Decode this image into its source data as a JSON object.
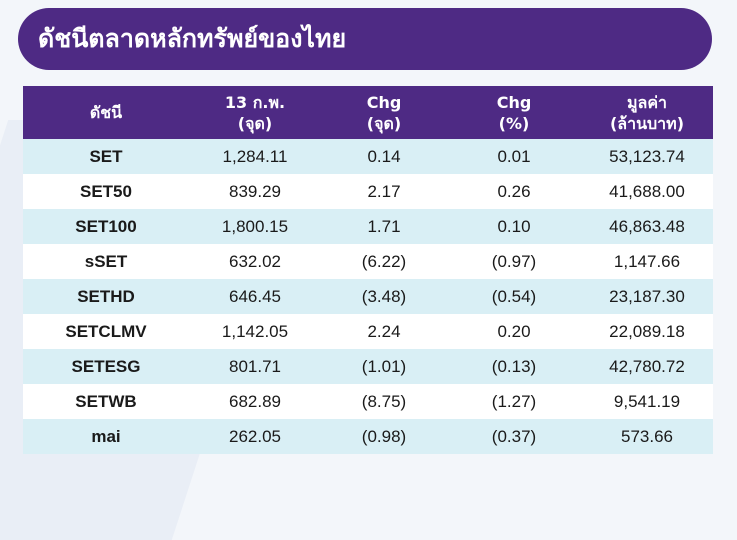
{
  "title": "ดัชนีตลาดหลักทรัพย์ของไทย",
  "colors": {
    "header_bg": "#4e2a84",
    "row_alt": "#d9eff5",
    "row_plain": "#ffffff"
  },
  "table": {
    "headers": [
      {
        "line1": "ดัชนี",
        "line2": ""
      },
      {
        "line1": "13 ก.พ.",
        "line2": "(จุด)"
      },
      {
        "line1": "Chg",
        "line2": "(จุด)"
      },
      {
        "line1": "Chg",
        "line2": "(%)"
      },
      {
        "line1": "มูลค่า",
        "line2": "(ล้านบาท)"
      }
    ],
    "rows": [
      [
        "SET",
        "1,284.11",
        "0.14",
        "0.01",
        "53,123.74"
      ],
      [
        "SET50",
        "839.29",
        "2.17",
        "0.26",
        "41,688.00"
      ],
      [
        "SET100",
        "1,800.15",
        "1.71",
        "0.10",
        "46,863.48"
      ],
      [
        "sSET",
        "632.02",
        "(6.22)",
        "(0.97)",
        "1,147.66"
      ],
      [
        "SETHD",
        "646.45",
        "(3.48)",
        "(0.54)",
        "23,187.30"
      ],
      [
        "SETCLMV",
        "1,142.05",
        "2.24",
        "0.20",
        "22,089.18"
      ],
      [
        "SETESG",
        "801.71",
        "(1.01)",
        "(0.13)",
        "42,780.72"
      ],
      [
        "SETWB",
        "682.89",
        "(8.75)",
        "(1.27)",
        "9,541.19"
      ],
      [
        "mai",
        "262.05",
        "(0.98)",
        "(0.37)",
        "573.66"
      ]
    ]
  }
}
